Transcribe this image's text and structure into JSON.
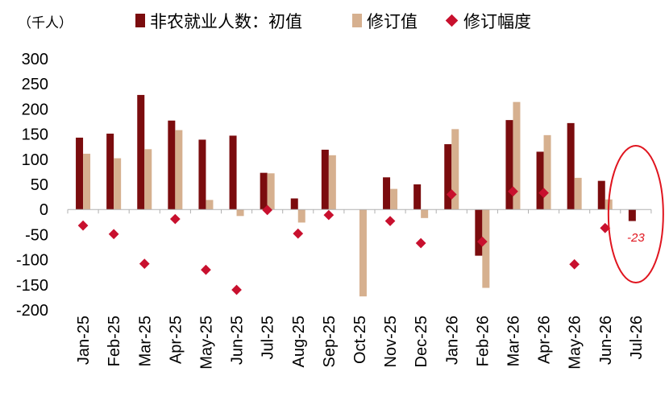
{
  "chart_data": {
    "type": "bar",
    "unit_label": "（千人）",
    "categories": [
      "Jan-25",
      "Feb-25",
      "Mar-25",
      "Apr-25",
      "May-25",
      "Jun-25",
      "Jul-25",
      "Aug-25",
      "Sep-25",
      "Oct-25",
      "Nov-25",
      "Dec-25",
      "Jan-26",
      "Feb-26",
      "Mar-26",
      "Apr-26",
      "May-26",
      "Jun-26",
      "Jul-26"
    ],
    "series": [
      {
        "name": "非农就业人数：初值",
        "kind": "bar",
        "color": "#7b0c0e",
        "values": [
          143,
          151,
          228,
          177,
          139,
          147,
          73,
          22,
          119,
          null,
          64,
          50,
          130,
          -92,
          178,
          115,
          172,
          57,
          -23
        ]
      },
      {
        "name": "修订值",
        "kind": "bar",
        "color": "#d6b08f",
        "values": [
          111,
          102,
          120,
          158,
          19,
          -13,
          72,
          -26,
          108,
          -173,
          41,
          -17,
          160,
          -156,
          214,
          148,
          63,
          20,
          null
        ]
      },
      {
        "name": "修订幅度",
        "kind": "marker",
        "color": "#c8102e",
        "values": [
          -32,
          -49,
          -108,
          -19,
          -120,
          -160,
          -1,
          -48,
          -11,
          null,
          -23,
          -67,
          30,
          -64,
          36,
          33,
          -109,
          -37,
          null
        ]
      }
    ],
    "ylim": [
      -200,
      300
    ],
    "yticks": [
      300,
      250,
      200,
      150,
      100,
      50,
      0,
      -50,
      -100,
      -150,
      -200
    ],
    "legend_position": "top",
    "annotation": {
      "category": "Jul-26",
      "text": "-23",
      "color": "#e0151f"
    },
    "grid": false
  }
}
